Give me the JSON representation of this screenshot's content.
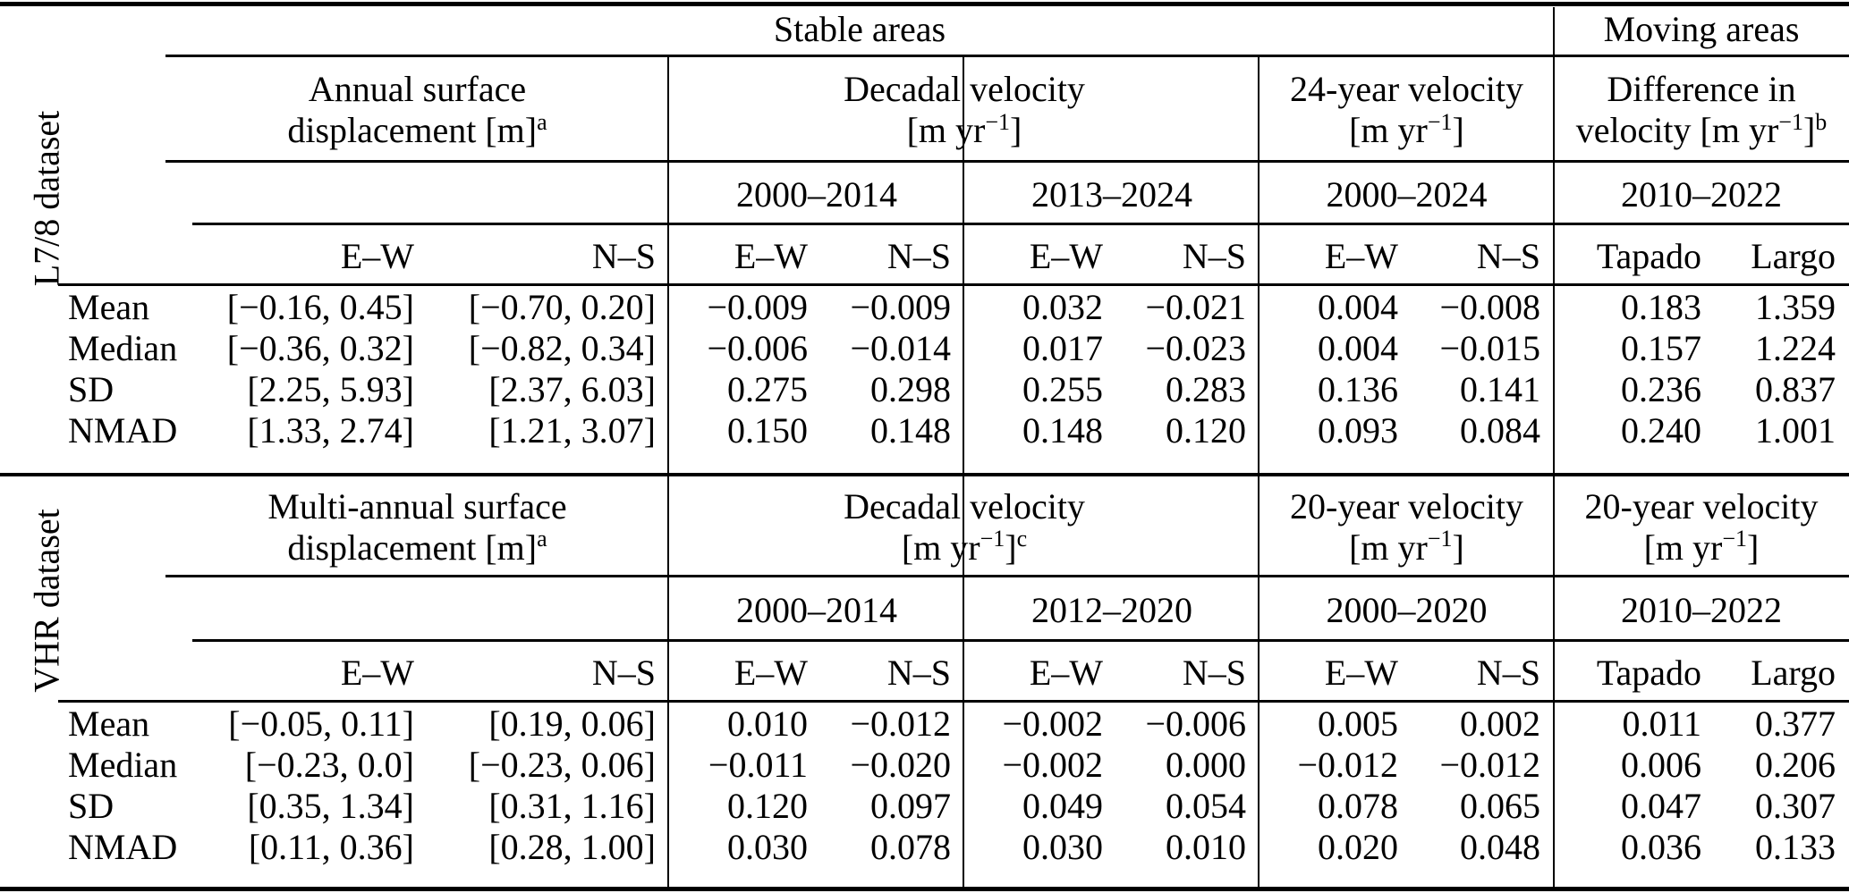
{
  "page": {
    "background": "#ffffff",
    "text_color": "#000000"
  },
  "table": {
    "top_span_headers": {
      "stable": "Stable areas",
      "moving": "Moving areas"
    },
    "sections": [
      {
        "dataset_label": "L7/8 dataset",
        "group_headers": [
          {
            "line1": "Annual surface",
            "l2a": "displacement [m]",
            "l2sup": "",
            "l2b": "",
            "note": "a"
          },
          {
            "line1": "Decadal velocity",
            "l2a": "[m yr",
            "l2sup": "−1",
            "l2b": "]",
            "note": ""
          },
          {
            "line1": "24-year velocity",
            "l2a": "[m yr",
            "l2sup": "−1",
            "l2b": "]",
            "note": ""
          },
          {
            "line1": "Difference in",
            "l2a": "velocity [m yr",
            "l2sup": "−1",
            "l2b": "]",
            "note": "b"
          }
        ],
        "periods": [
          "2000–2014",
          "2013–2024",
          "2000–2024",
          "2010–2022"
        ],
        "col_headers": [
          "E–W",
          "N–S",
          "E–W",
          "N–S",
          "E–W",
          "N–S",
          "E–W",
          "N–S",
          "Tapado",
          "Largo"
        ],
        "rows": [
          {
            "label": "Mean",
            "values": [
              "[−0.16, 0.45]",
              "[−0.70, 0.20]",
              "−0.009",
              "−0.009",
              "0.032",
              "−0.021",
              "0.004",
              "−0.008",
              "0.183",
              "1.359"
            ]
          },
          {
            "label": "Median",
            "values": [
              "[−0.36, 0.32]",
              "[−0.82, 0.34]",
              "−0.006",
              "−0.014",
              "0.017",
              "−0.023",
              "0.004",
              "−0.015",
              "0.157",
              "1.224"
            ]
          },
          {
            "label": "SD",
            "values": [
              "[2.25, 5.93]",
              "[2.37, 6.03]",
              "0.275",
              "0.298",
              "0.255",
              "0.283",
              "0.136",
              "0.141",
              "0.236",
              "0.837"
            ]
          },
          {
            "label": "NMAD",
            "values": [
              "[1.33, 2.74]",
              "[1.21, 3.07]",
              "0.150",
              "0.148",
              "0.148",
              "0.120",
              "0.093",
              "0.084",
              "0.240",
              "1.001"
            ]
          }
        ]
      },
      {
        "dataset_label": "VHR dataset",
        "group_headers": [
          {
            "line1": "Multi-annual surface",
            "l2a": "displacement [m]",
            "l2sup": "",
            "l2b": "",
            "note": "a"
          },
          {
            "line1": "Decadal velocity",
            "l2a": "[m yr",
            "l2sup": "−1",
            "l2b": "]",
            "note": "c"
          },
          {
            "line1": "20-year velocity",
            "l2a": "[m yr",
            "l2sup": "−1",
            "l2b": "]",
            "note": ""
          },
          {
            "line1": "20-year velocity",
            "l2a": "[m yr",
            "l2sup": "−1",
            "l2b": "]",
            "note": ""
          }
        ],
        "periods": [
          "2000–2014",
          "2012–2020",
          "2000–2020",
          "2010–2022"
        ],
        "col_headers": [
          "E–W",
          "N–S",
          "E–W",
          "N–S",
          "E–W",
          "N–S",
          "E–W",
          "N–S",
          "Tapado",
          "Largo"
        ],
        "rows": [
          {
            "label": "Mean",
            "values": [
              "[−0.05, 0.11]",
              "[0.19, 0.06]",
              "0.010",
              "−0.012",
              "−0.002",
              "−0.006",
              "0.005",
              "0.002",
              "0.011",
              "0.377"
            ]
          },
          {
            "label": "Median",
            "values": [
              "[−0.23, 0.0]",
              "[−0.23, 0.06]",
              "−0.011",
              "−0.020",
              "−0.002",
              "0.000",
              "−0.012",
              "−0.012",
              "0.006",
              "0.206"
            ]
          },
          {
            "label": "SD",
            "values": [
              "[0.35, 1.34]",
              "[0.31, 1.16]",
              "0.120",
              "0.097",
              "0.049",
              "0.054",
              "0.078",
              "0.065",
              "0.047",
              "0.307"
            ]
          },
          {
            "label": "NMAD",
            "values": [
              "[0.11, 0.36]",
              "[0.28, 1.00]",
              "0.030",
              "0.078",
              "0.030",
              "0.010",
              "0.020",
              "0.048",
              "0.036",
              "0.133"
            ]
          }
        ]
      }
    ]
  }
}
